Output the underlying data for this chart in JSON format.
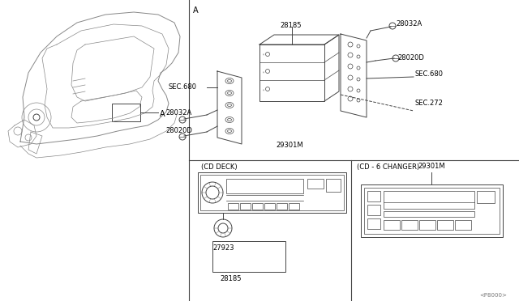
{
  "bg_color": "#ffffff",
  "line_color": "#444444",
  "light_color": "#888888",
  "page_code": "<P8000>",
  "labels": {
    "A_section": "A",
    "28185": "28185",
    "28032A_r": "28032A",
    "28020D_r": "28020D",
    "SEC680_r": "SEC.680",
    "SEC272": "SEC.272",
    "29301M": "29301M",
    "SEC680_l": "SEC.680",
    "28032A_l": "28032A",
    "28020D_l": "28020D",
    "cd_deck": "(CD DECK)",
    "cd_6_changer": "(CD - 6 CHANGER)",
    "27923": "27923",
    "28185_b": "28185",
    "29301M_b": "29301M",
    "A_car": "A"
  },
  "font_size": 6.0,
  "lw": 0.7,
  "lw2": 0.5
}
